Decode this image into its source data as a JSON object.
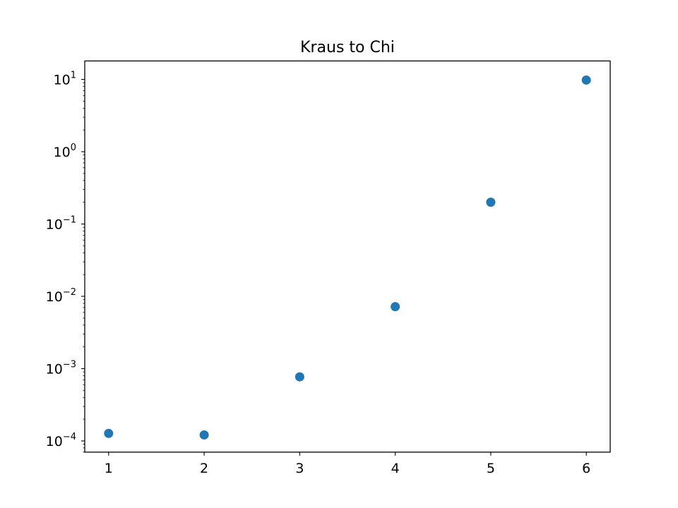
{
  "chart_data": {
    "type": "scatter",
    "title": "Kraus to Chi",
    "xlabel": "",
    "ylabel": "",
    "x": [
      1,
      2,
      3,
      4,
      5,
      6
    ],
    "y": [
      0.000127,
      0.000121,
      0.00077,
      0.0072,
      0.2,
      9.8
    ],
    "xlim": [
      0.75,
      6.25
    ],
    "ylim": [
      7e-05,
      18
    ],
    "yscale": "log",
    "xticks": [
      "1",
      "2",
      "3",
      "4",
      "5",
      "6"
    ],
    "yticks": [
      {
        "base": "10",
        "exp": "−4",
        "value": 0.0001
      },
      {
        "base": "10",
        "exp": "−3",
        "value": 0.001
      },
      {
        "base": "10",
        "exp": "−2",
        "value": 0.01
      },
      {
        "base": "10",
        "exp": "−1",
        "value": 0.1
      },
      {
        "base": "10",
        "exp": "0",
        "value": 1
      },
      {
        "base": "10",
        "exp": "1",
        "value": 10
      }
    ],
    "grid": false,
    "marker_color": "#1f77b4"
  }
}
